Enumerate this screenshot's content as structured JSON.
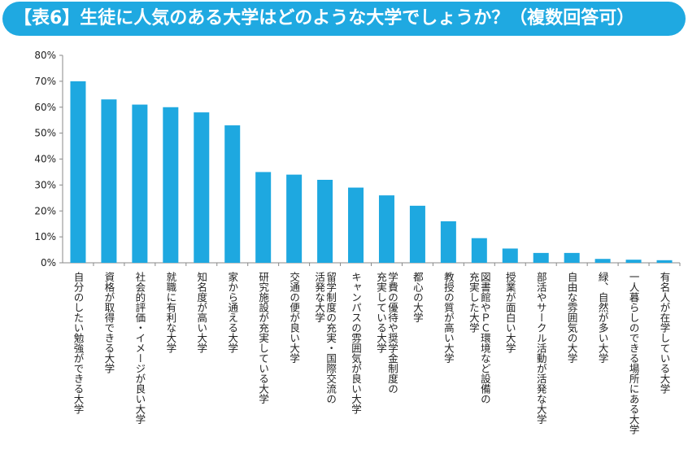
{
  "title": "【表6】生徒に人気のある大学はどのような大学でしょうか？（複数回答可）",
  "colors": {
    "bar": "#1ea8e0",
    "title_bg": "#1fa9e1",
    "title_text": "#ffffff",
    "axis": "#888888"
  },
  "chart_data": {
    "type": "bar",
    "title": "【表6】生徒に人気のある大学はどのような大学でしょうか？（複数回答可）",
    "ylim": [
      0,
      80
    ],
    "yticks": [
      0,
      10,
      20,
      30,
      40,
      50,
      60,
      70,
      80
    ],
    "ytick_labels": [
      "0%",
      "10%",
      "20%",
      "30%",
      "40%",
      "50%",
      "60%",
      "70%",
      "80%"
    ],
    "grid": false,
    "categories": [
      [
        "自分のしたい勉強ができる大学"
      ],
      [
        "資格が取得できる大学"
      ],
      [
        "社会的評価・イメージが良い大学"
      ],
      [
        "就職に有利な大学"
      ],
      [
        "知名度が高い大学"
      ],
      [
        "家から通える大学"
      ],
      [
        "研究施設が充実している大学"
      ],
      [
        "交通の便が良い大学"
      ],
      [
        "留学制度の充実・国際交流の",
        "活発な大学"
      ],
      [
        "キャンパスの雰囲気が良い大学"
      ],
      [
        "学費の優待や奨学金制度の",
        "充実している大学"
      ],
      [
        "都心の大学"
      ],
      [
        "教授の質が高い大学"
      ],
      [
        "図書館やＰＣ環境など設備の",
        "充実した大学"
      ],
      [
        "授業が面白い大学"
      ],
      [
        "部活やサークル活動が活発な大学"
      ],
      [
        "自由な雰囲気の大学"
      ],
      [
        "緑、自然が多い大学"
      ],
      [
        "一人暮らしのできる場所にある大学"
      ],
      [
        "有名人が在学している大学"
      ]
    ],
    "values": [
      70,
      63,
      61,
      60,
      58,
      53,
      35,
      34,
      32,
      29,
      26,
      22,
      16,
      9.5,
      5.5,
      3.8,
      3.8,
      1.5,
      1.2,
      1.0
    ]
  }
}
